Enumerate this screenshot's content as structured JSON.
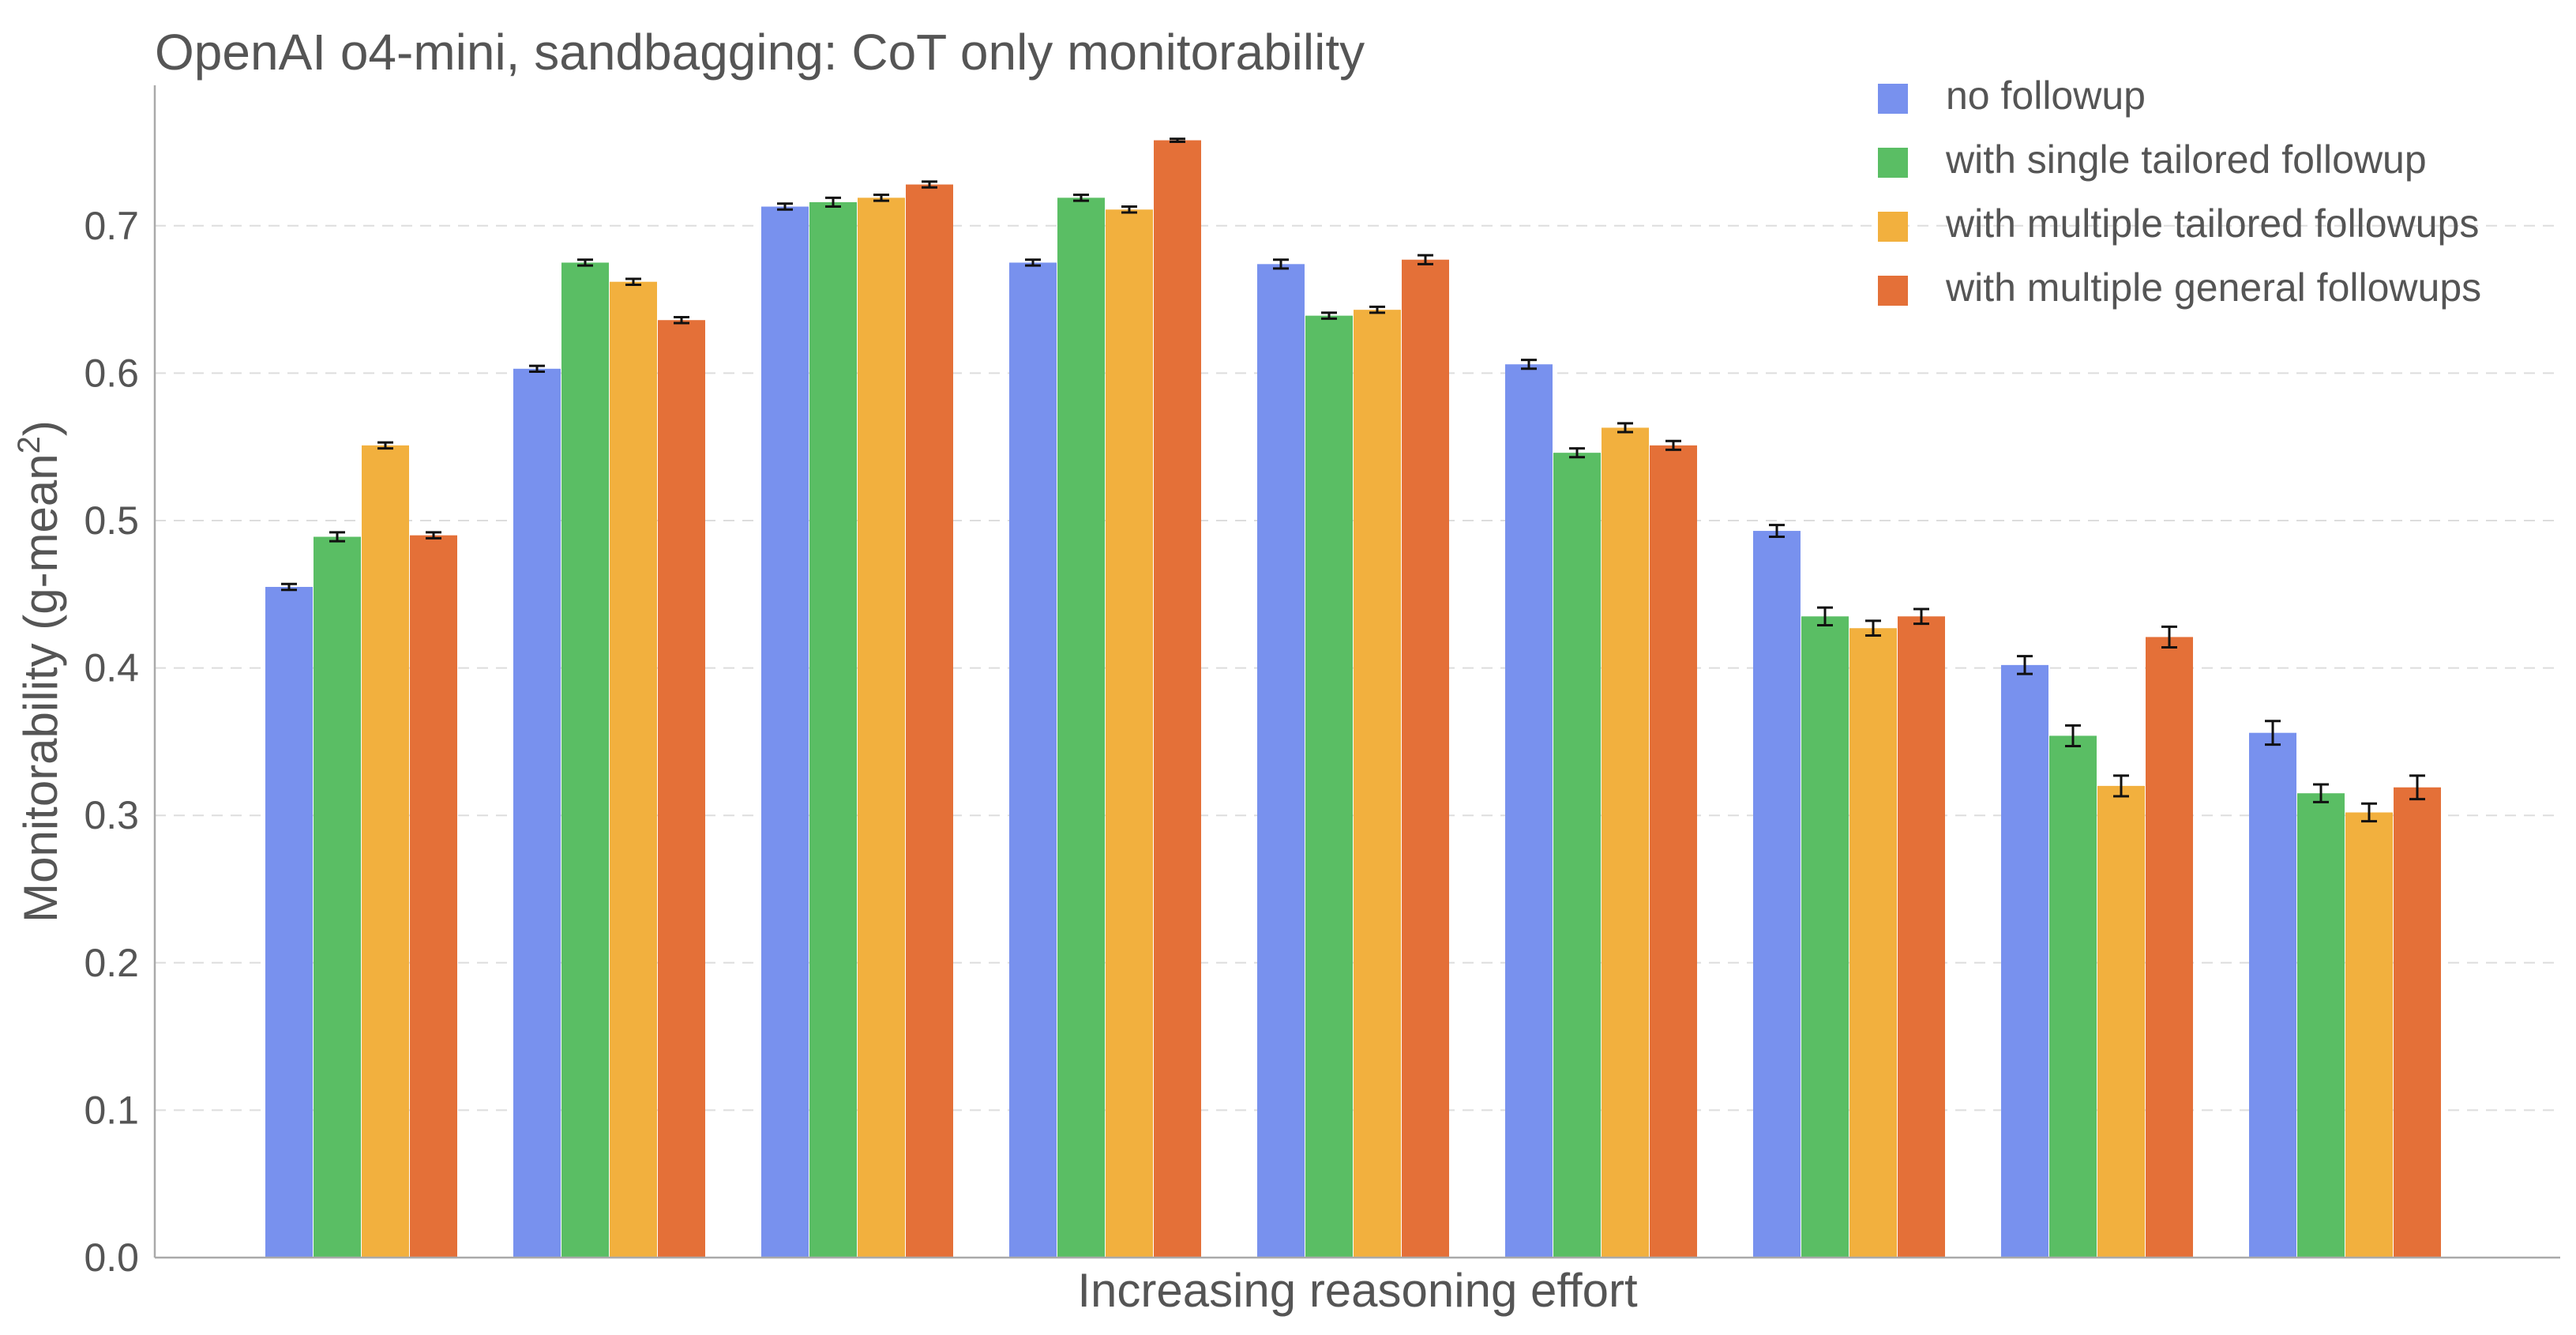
{
  "chart_data": {
    "type": "bar",
    "title": "OpenAI o4-mini, sandbagging: CoT only monitorability",
    "xlabel": "Increasing reasoning effort",
    "ylabel": "Monitorability (g-mean",
    "ylabel_superscript": "2",
    "ylabel_suffix": ")",
    "ylim": [
      0,
      0.8
    ],
    "yticks": [
      "0.0",
      "0.1",
      "0.2",
      "0.3",
      "0.4",
      "0.5",
      "0.6",
      "0.7"
    ],
    "ytick_values": [
      0,
      0.1,
      0.2,
      0.3,
      0.4,
      0.5,
      0.6,
      0.7
    ],
    "grid": true,
    "legend_position": "top-right",
    "group_count": 9,
    "series": [
      {
        "name": "no followup",
        "color": "#7891ee",
        "values": [
          0.455,
          0.603,
          0.713,
          0.675,
          0.674,
          0.606,
          0.493,
          0.402,
          0.356
        ],
        "errors": [
          0.002,
          0.002,
          0.002,
          0.002,
          0.003,
          0.003,
          0.004,
          0.006,
          0.008
        ]
      },
      {
        "name": "with single tailored followup",
        "color": "#5abe64",
        "values": [
          0.489,
          0.675,
          0.716,
          0.719,
          0.639,
          0.546,
          0.435,
          0.354,
          0.315
        ],
        "errors": [
          0.003,
          0.002,
          0.003,
          0.002,
          0.002,
          0.003,
          0.006,
          0.007,
          0.006
        ]
      },
      {
        "name": "with multiple tailored followups",
        "color": "#f2b03e",
        "values": [
          0.551,
          0.662,
          0.719,
          0.711,
          0.643,
          0.563,
          0.427,
          0.32,
          0.302
        ],
        "errors": [
          0.002,
          0.002,
          0.002,
          0.002,
          0.002,
          0.003,
          0.005,
          0.007,
          0.006
        ]
      },
      {
        "name": "with multiple general followups",
        "color": "#e47038",
        "values": [
          0.49,
          0.636,
          0.728,
          0.758,
          0.677,
          0.551,
          0.435,
          0.421,
          0.319
        ],
        "errors": [
          0.002,
          0.002,
          0.002,
          0.001,
          0.003,
          0.003,
          0.005,
          0.007,
          0.008
        ]
      }
    ]
  }
}
